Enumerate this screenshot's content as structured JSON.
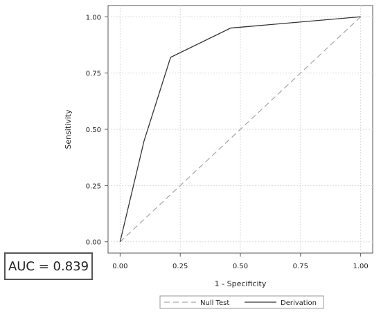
{
  "chart_data": {
    "type": "line",
    "xlabel": "1 - Specificity",
    "ylabel": "Sensitivity",
    "xlim": [
      -0.05,
      1.05
    ],
    "ylim": [
      -0.05,
      1.05
    ],
    "xticks": [
      "0.00",
      "0.25",
      "0.50",
      "0.75",
      "1.00"
    ],
    "yticks": [
      "0.00",
      "0.25",
      "0.50",
      "0.75",
      "1.00"
    ],
    "grid": true,
    "legend_position": "bottom",
    "series": [
      {
        "name": "Null Test",
        "style": "dashed",
        "color": "#aaaaaa",
        "x": [
          0,
          1
        ],
        "y": [
          0,
          1
        ]
      },
      {
        "name": "Derivation",
        "style": "solid",
        "color": "#333333",
        "x": [
          0,
          0.1,
          0.21,
          0.46,
          1.0
        ],
        "y": [
          0,
          0.45,
          0.82,
          0.95,
          1.0
        ]
      }
    ]
  },
  "annotation": {
    "auc_text": "AUC = 0.839"
  }
}
